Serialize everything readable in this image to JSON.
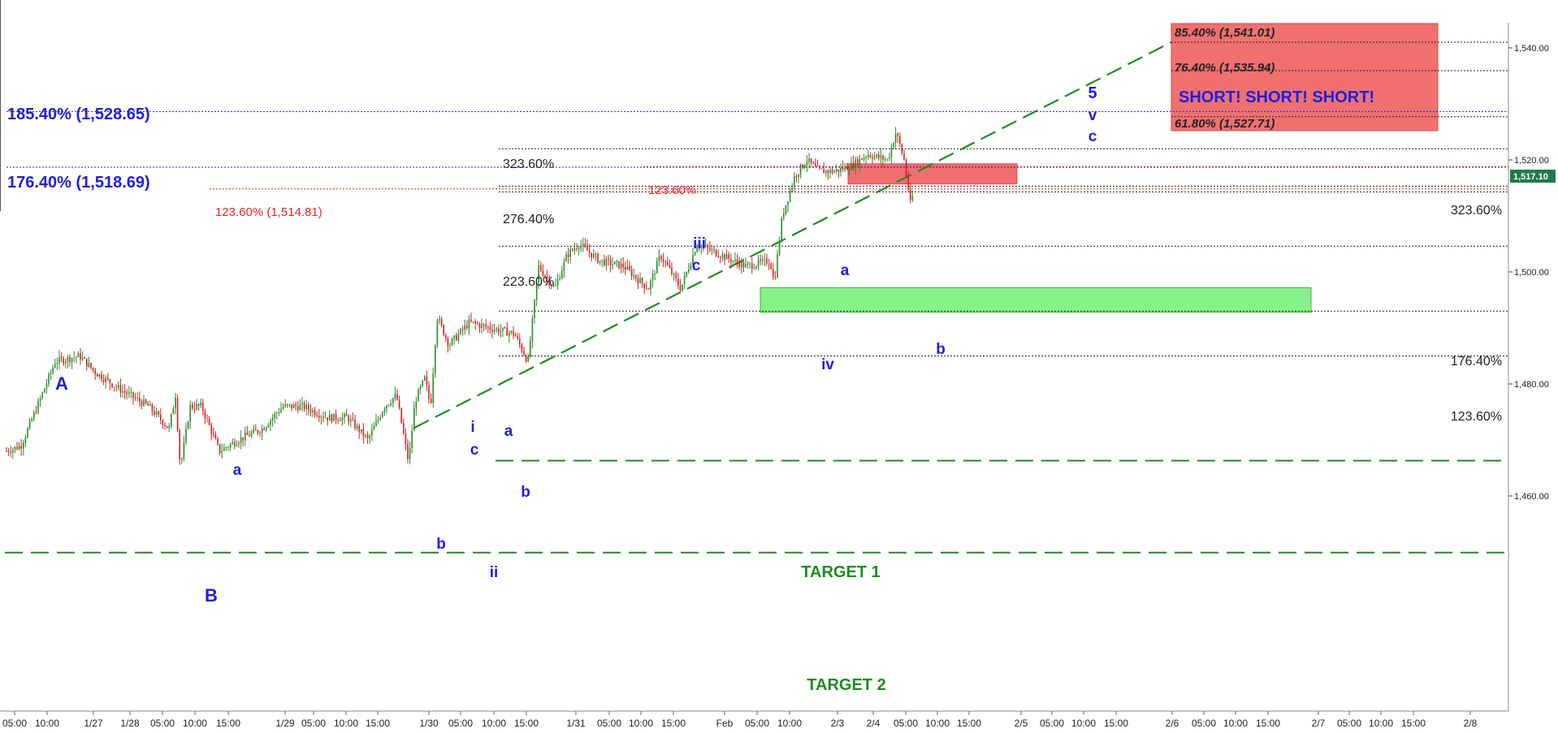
{
  "chart_data": {
    "type": "candlestick",
    "last_price": "1,517.10",
    "y_axis": {
      "range": [
        1448,
        1543
      ],
      "ticks": [
        "1,540.00",
        "1,520.00",
        "1,500.00",
        "1,480.00",
        "1,460.00"
      ],
      "tick_values": [
        1540,
        1520,
        1500,
        1480,
        1460
      ]
    },
    "x_axis": {
      "labels": [
        "05:00",
        "10:00",
        "1/27",
        "1/28",
        "05:00",
        "10:00",
        "15:00",
        "1/29",
        "05:00",
        "10:00",
        "15:00",
        "1/30",
        "05:00",
        "10:00",
        "15:00",
        "1/31",
        "05:00",
        "10:00",
        "15:00",
        "Feb",
        "05:00",
        "10:00",
        "2/3",
        "2/4",
        "05:00",
        "10:00",
        "15:00",
        "2/5",
        "05:00",
        "10:00",
        "15:00",
        "2/6",
        "05:00",
        "10:00",
        "15:00",
        "2/7",
        "05:00",
        "10:00",
        "15:00",
        "2/8"
      ]
    },
    "fib_levels_right": [
      {
        "label": "323.60%",
        "value": 1515.3
      },
      {
        "label": "176.40%",
        "value": 1493.0
      },
      {
        "label": "123.60%",
        "value": 1485.0
      }
    ],
    "fib_levels_mid": [
      {
        "label": "323.60%",
        "value": 1522.0
      },
      {
        "label": "276.40%",
        "value": 1514.3
      },
      {
        "label": "223.60%",
        "value": 1504.6
      }
    ],
    "fib_levels_big": [
      {
        "label": "185.40% (1,528.65)",
        "value": 1528.65
      },
      {
        "label": "176.40% (1,518.69)",
        "value": 1518.69
      }
    ],
    "fib_levels_red": [
      {
        "label": "123.60% (1,514.81)",
        "value": 1514.81
      },
      {
        "label": "123.60%",
        "value": 1518.8
      }
    ],
    "short_zone": {
      "text": "SHORT! SHORT! SHORT!",
      "levels": [
        {
          "label": "85.40% (1,541.01)",
          "value": 1541.01
        },
        {
          "label": "76.40% (1,535.94)",
          "value": 1535.94
        },
        {
          "label": "61.80% (1,527.71)",
          "value": 1527.71
        }
      ]
    },
    "zones": {
      "green_low": 1492.8,
      "green_high": 1497.2,
      "red_low": 1515.7,
      "red_high": 1519.3
    },
    "targets": [
      {
        "label": "TARGET 1",
        "value": 1466.3
      },
      {
        "label": "TARGET 2",
        "value": 1449.9
      }
    ],
    "wave_labels": [
      "A",
      "B",
      "a",
      "b",
      "i",
      "c",
      "ii",
      "a",
      "b",
      "iii",
      "c",
      "iv",
      "a",
      "b",
      "5",
      "v",
      "c"
    ],
    "price_path": [
      [
        0,
        1468
      ],
      [
        18,
        1469
      ],
      [
        38,
        1476
      ],
      [
        60,
        1484
      ],
      [
        90,
        1485
      ],
      [
        110,
        1482
      ],
      [
        140,
        1479
      ],
      [
        175,
        1476
      ],
      [
        200,
        1472
      ],
      [
        208,
        1478
      ],
      [
        214,
        1465
      ],
      [
        226,
        1476
      ],
      [
        240,
        1476
      ],
      [
        262,
        1468
      ],
      [
        285,
        1470
      ],
      [
        315,
        1472
      ],
      [
        340,
        1476
      ],
      [
        365,
        1476
      ],
      [
        395,
        1474
      ],
      [
        420,
        1474
      ],
      [
        445,
        1470
      ],
      [
        465,
        1476
      ],
      [
        480,
        1478
      ],
      [
        495,
        1466
      ],
      [
        503,
        1477
      ],
      [
        515,
        1481
      ],
      [
        522,
        1476
      ],
      [
        530,
        1492
      ],
      [
        545,
        1487
      ],
      [
        570,
        1491
      ],
      [
        595,
        1490
      ],
      [
        625,
        1489
      ],
      [
        642,
        1484
      ],
      [
        655,
        1501
      ],
      [
        675,
        1497
      ],
      [
        690,
        1503
      ],
      [
        705,
        1505
      ],
      [
        730,
        1502
      ],
      [
        760,
        1501
      ],
      [
        790,
        1497
      ],
      [
        805,
        1503
      ],
      [
        818,
        1500
      ],
      [
        830,
        1497
      ],
      [
        850,
        1505
      ],
      [
        880,
        1503
      ],
      [
        910,
        1501
      ],
      [
        940,
        1502
      ],
      [
        945,
        1498
      ],
      [
        955,
        1510
      ],
      [
        970,
        1517
      ],
      [
        985,
        1520
      ],
      [
        1000,
        1518
      ],
      [
        1020,
        1518
      ],
      [
        1040,
        1519
      ],
      [
        1060,
        1521
      ],
      [
        1085,
        1520
      ],
      [
        1095,
        1525
      ],
      [
        1105,
        1520
      ],
      [
        1113,
        1512
      ],
      [
        1118,
        1515
      ]
    ]
  },
  "colors": {
    "blue": "#1f1fdd",
    "red": "#ee2222",
    "green_line": "#1f8c1f",
    "green_zone": "#88f088",
    "red_zone": "#f07070",
    "price_badge": "#1f7a4a"
  }
}
